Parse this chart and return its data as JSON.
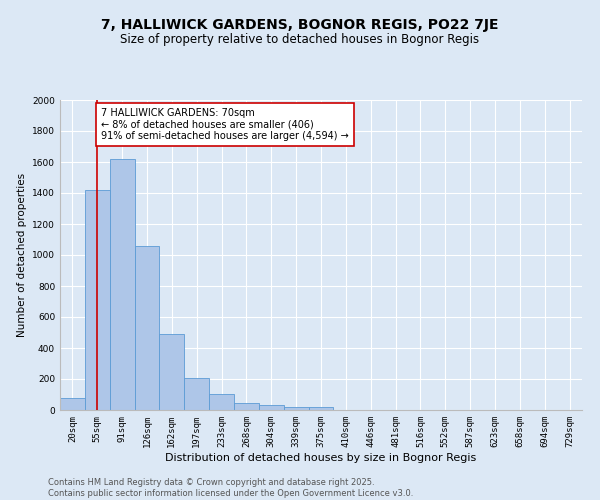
{
  "title": "7, HALLIWICK GARDENS, BOGNOR REGIS, PO22 7JE",
  "subtitle": "Size of property relative to detached houses in Bognor Regis",
  "xlabel": "Distribution of detached houses by size in Bognor Regis",
  "ylabel": "Number of detached properties",
  "bar_color": "#aec6e8",
  "bar_edge_color": "#5b9bd5",
  "categories": [
    "20sqm",
    "55sqm",
    "91sqm",
    "126sqm",
    "162sqm",
    "197sqm",
    "233sqm",
    "268sqm",
    "304sqm",
    "339sqm",
    "375sqm",
    "410sqm",
    "446sqm",
    "481sqm",
    "516sqm",
    "552sqm",
    "587sqm",
    "623sqm",
    "658sqm",
    "694sqm",
    "729sqm"
  ],
  "values": [
    75,
    1420,
    1620,
    1055,
    490,
    205,
    105,
    45,
    35,
    22,
    20,
    0,
    0,
    0,
    0,
    0,
    0,
    0,
    0,
    0,
    0
  ],
  "ylim": [
    0,
    2000
  ],
  "yticks": [
    0,
    200,
    400,
    600,
    800,
    1000,
    1200,
    1400,
    1600,
    1800,
    2000
  ],
  "property_line_x": 1.0,
  "annotation_text": "7 HALLIWICK GARDENS: 70sqm\n← 8% of detached houses are smaller (406)\n91% of semi-detached houses are larger (4,594) →",
  "annotation_box_color": "#ffffff",
  "annotation_box_edge_color": "#cc0000",
  "footer_line1": "Contains HM Land Registry data © Crown copyright and database right 2025.",
  "footer_line2": "Contains public sector information licensed under the Open Government Licence v3.0.",
  "background_color": "#dce8f5",
  "plot_bg_color": "#dce8f5",
  "grid_color": "#ffffff",
  "title_fontsize": 10,
  "subtitle_fontsize": 8.5,
  "tick_fontsize": 6.5,
  "ylabel_fontsize": 7.5,
  "xlabel_fontsize": 8,
  "annotation_fontsize": 7,
  "footer_fontsize": 6
}
